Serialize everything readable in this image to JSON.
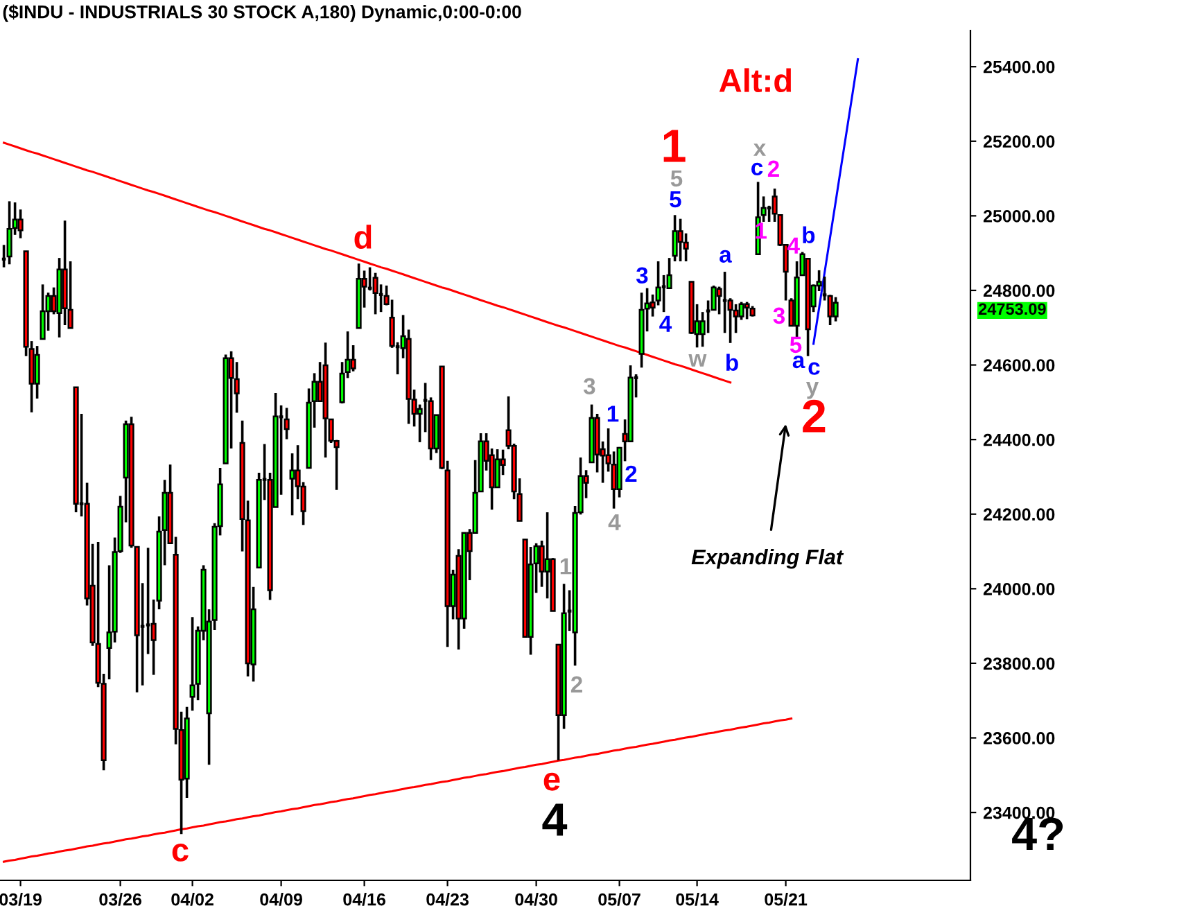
{
  "chart_data": {
    "type": "candlestick",
    "title": "($INDU - INDUSTRIALS 30 STOCK A,180) Dynamic,0:00-0:00",
    "categories": [
      null,
      null,
      null,
      "03/19",
      null,
      null,
      null,
      null,
      null,
      null,
      null,
      null,
      null,
      null,
      null,
      null,
      null,
      null,
      null,
      null,
      null,
      "03/26",
      null,
      null,
      null,
      null,
      null,
      null,
      null,
      null,
      null,
      null,
      null,
      null,
      "04/02",
      null,
      null,
      null,
      null,
      null,
      null,
      null,
      null,
      null,
      null,
      null,
      null,
      null,
      null,
      null,
      "04/09",
      null,
      null,
      null,
      null,
      null,
      null,
      null,
      null,
      null,
      null,
      null,
      null,
      null,
      null,
      "04/16",
      null,
      null,
      null,
      null,
      null,
      null,
      null,
      null,
      null,
      null,
      null,
      null,
      null,
      null,
      "04/23",
      null,
      null,
      null,
      null,
      null,
      null,
      null,
      null,
      null,
      null,
      null,
      null,
      null,
      null,
      null,
      "04/30",
      null,
      null,
      null,
      null,
      null,
      null,
      null,
      null,
      null,
      null,
      null,
      null,
      null,
      null,
      "05/07",
      null,
      null,
      null,
      null,
      null,
      null,
      null,
      null,
      null,
      null,
      null,
      null,
      null,
      "05/14",
      null,
      null,
      null,
      null,
      null,
      null,
      null,
      null,
      null,
      null,
      null,
      null,
      null,
      null,
      null,
      "05/21",
      null,
      null,
      null,
      null,
      null,
      null,
      null,
      null,
      null,
      null,
      null,
      null,
      null
    ],
    "ohlc": [
      [
        24884,
        24922,
        24862,
        24884
      ],
      [
        24891,
        25039,
        24870,
        24965
      ],
      [
        24967,
        25036,
        24949,
        24990
      ],
      [
        24990,
        25017,
        24940,
        24961
      ],
      [
        24905,
        24905,
        24624,
        24649
      ],
      [
        24643,
        24664,
        24473,
        24550
      ],
      [
        24550,
        24651,
        24510,
        24627
      ],
      [
        24670,
        24816,
        24670,
        24744
      ],
      [
        24744,
        24794,
        24692,
        24785
      ],
      [
        24785,
        24808,
        24736,
        24744
      ],
      [
        24739,
        24887,
        24674,
        24856
      ],
      [
        24856,
        24987,
        24707,
        24752
      ],
      [
        24748,
        24878,
        24699,
        24699
      ],
      [
        24540,
        24540,
        24205,
        24228
      ],
      [
        24228,
        24469,
        24194,
        24228
      ],
      [
        24228,
        24284,
        23955,
        23974
      ],
      [
        24008,
        24120,
        23847,
        23856
      ],
      [
        23852,
        24125,
        23736,
        23748
      ],
      [
        23745,
        23772,
        23513,
        23540
      ],
      [
        23841,
        24063,
        23757,
        23883
      ],
      [
        23885,
        24137,
        23856,
        24098
      ],
      [
        24101,
        24249,
        24096,
        24220
      ],
      [
        24298,
        24451,
        24178,
        24441
      ],
      [
        24441,
        24461,
        24110,
        24116
      ],
      [
        24112,
        24112,
        23722,
        23875
      ],
      [
        23899,
        24015,
        23741,
        23899
      ],
      [
        23903,
        24110,
        23825,
        23903
      ],
      [
        23906,
        23971,
        23769,
        23862
      ],
      [
        23968,
        24194,
        23945,
        24153
      ],
      [
        24157,
        24292,
        24063,
        24257
      ],
      [
        24257,
        24333,
        24122,
        24122
      ],
      [
        24091,
        24139,
        23583,
        23624
      ],
      [
        23621,
        23670,
        23342,
        23488
      ],
      [
        23491,
        23683,
        23439,
        23652
      ],
      [
        23710,
        23924,
        23673,
        23741
      ],
      [
        23745,
        23899,
        23701,
        23887
      ],
      [
        23887,
        24063,
        23862,
        24051
      ],
      [
        23666,
        23945,
        23528,
        23912
      ],
      [
        23916,
        24176,
        23889,
        24166
      ],
      [
        24168,
        24324,
        24143,
        24280
      ],
      [
        24336,
        24628,
        24336,
        24618
      ],
      [
        24618,
        24637,
        24376,
        24565
      ],
      [
        24562,
        24608,
        24472,
        24524
      ],
      [
        24391,
        24451,
        24100,
        24187
      ],
      [
        24183,
        24236,
        23765,
        23800
      ],
      [
        23797,
        24005,
        23751,
        23945
      ],
      [
        24057,
        24311,
        24057,
        24292
      ],
      [
        24293,
        24388,
        24238,
        24293
      ],
      [
        24292,
        24311,
        23970,
        23996
      ],
      [
        24219,
        24525,
        24219,
        24462
      ],
      [
        24461,
        24492,
        24252,
        24461
      ],
      [
        24454,
        24485,
        24401,
        24428
      ],
      [
        24295,
        24363,
        24197,
        24317
      ],
      [
        24317,
        24385,
        24240,
        24275
      ],
      [
        24274,
        24286,
        24171,
        24208
      ],
      [
        24324,
        24537,
        24324,
        24499
      ],
      [
        24503,
        24578,
        24432,
        24555
      ],
      [
        24555,
        24608,
        24503,
        24503
      ],
      [
        24599,
        24660,
        24352,
        24457
      ],
      [
        24454,
        24454,
        24391,
        24397
      ],
      [
        24396,
        24399,
        24265,
        24380
      ],
      [
        24500,
        24608,
        24497,
        24577
      ],
      [
        24581,
        24690,
        24565,
        24614
      ],
      [
        24614,
        24653,
        24583,
        24591
      ],
      [
        24699,
        24872,
        24699,
        24831
      ],
      [
        24831,
        24853,
        24754,
        24810
      ],
      [
        24806,
        24862,
        24800,
        24806
      ],
      [
        24834,
        24847,
        24736,
        24793
      ],
      [
        24789,
        24816,
        24742,
        24789
      ],
      [
        24785,
        24813,
        24760,
        24763
      ],
      [
        24727,
        24775,
        24646,
        24651
      ],
      [
        24649,
        24661,
        24575,
        24649
      ],
      [
        24645,
        24734,
        24618,
        24677
      ],
      [
        24670,
        24695,
        24442,
        24509
      ],
      [
        24507,
        24534,
        24435,
        24469
      ],
      [
        24469,
        24494,
        24393,
        24482
      ],
      [
        24505,
        24552,
        24420,
        24505
      ],
      [
        24503,
        24513,
        24345,
        24376
      ],
      [
        24376,
        24466,
        24364,
        24466
      ],
      [
        24596,
        24596,
        24321,
        24324
      ],
      [
        24317,
        24343,
        23844,
        23953
      ],
      [
        23953,
        24051,
        23918,
        24038
      ],
      [
        24088,
        24106,
        23837,
        23920
      ],
      [
        23920,
        24150,
        23893,
        24150
      ],
      [
        24150,
        24160,
        24023,
        24101
      ],
      [
        24150,
        24345,
        24150,
        24257
      ],
      [
        24261,
        24417,
        24261,
        24395
      ],
      [
        24395,
        24417,
        24317,
        24343
      ],
      [
        24358,
        24376,
        24212,
        24272
      ],
      [
        24272,
        24374,
        24272,
        24347
      ],
      [
        24347,
        24373,
        24305,
        24332
      ],
      [
        24425,
        24516,
        24374,
        24383
      ],
      [
        24383,
        24389,
        24240,
        24261
      ],
      [
        24254,
        24296,
        24182,
        24182
      ],
      [
        24132,
        24132,
        23871,
        23871
      ],
      [
        23871,
        24112,
        23823,
        24065
      ],
      [
        24068,
        24122,
        23989,
        24114
      ],
      [
        24114,
        24129,
        24005,
        24046
      ],
      [
        24046,
        24205,
        23974,
        24079
      ],
      [
        24079,
        24082,
        23940,
        23940
      ],
      [
        23850,
        23850,
        23540,
        23661
      ],
      [
        23661,
        24013,
        23624,
        23934
      ],
      [
        23940,
        23996,
        23887,
        23940
      ],
      [
        23883,
        24222,
        23794,
        24203
      ],
      [
        24205,
        24352,
        24199,
        24302
      ],
      [
        24302,
        24318,
        24243,
        24284
      ],
      [
        24339,
        24494,
        24339,
        24458
      ],
      [
        24458,
        24469,
        24312,
        24360
      ],
      [
        24374,
        24395,
        24284,
        24357
      ],
      [
        24358,
        24430,
        24314,
        24336
      ],
      [
        24333,
        24368,
        24215,
        24267
      ],
      [
        24267,
        24380,
        24245,
        24378
      ],
      [
        24415,
        24454,
        24342,
        24395
      ],
      [
        24395,
        24599,
        24395,
        24566
      ],
      [
        24566,
        24575,
        24513,
        24566
      ],
      [
        24630,
        24794,
        24593,
        24748
      ],
      [
        24751,
        24806,
        24690,
        24765
      ],
      [
        24768,
        24789,
        24730,
        24754
      ],
      [
        24773,
        24878,
        24760,
        24808
      ],
      [
        24810,
        24841,
        24742,
        24810
      ],
      [
        24806,
        24887,
        24806,
        24841
      ],
      [
        24893,
        25002,
        24878,
        24959
      ],
      [
        24959,
        24992,
        24878,
        24930
      ],
      [
        24928,
        24953,
        24878,
        24912
      ],
      [
        24823,
        24823,
        24683,
        24686
      ],
      [
        24683,
        24763,
        24647,
        24717
      ],
      [
        24683,
        24742,
        24649,
        24717
      ],
      [
        24745,
        24773,
        24686,
        24745
      ],
      [
        24748,
        24813,
        24748,
        24808
      ],
      [
        24804,
        24810,
        24736,
        24785
      ],
      [
        24773,
        24850,
        24686,
        24773
      ],
      [
        24773,
        24779,
        24659,
        24748
      ],
      [
        24746,
        24763,
        24686,
        24730
      ],
      [
        24730,
        24769,
        24721,
        24763
      ],
      [
        24763,
        24769,
        24723,
        24754
      ],
      [
        24751,
        24758,
        24730,
        24733
      ],
      [
        24897,
        25091,
        24897,
        24996
      ],
      [
        25002,
        25052,
        24984,
        25021
      ],
      [
        25021,
        25027,
        24984,
        25021
      ],
      [
        25052,
        25073,
        24984,
        25006
      ],
      [
        25002,
        25002,
        24919,
        24922
      ],
      [
        24922,
        24922,
        24773,
        24850
      ],
      [
        24773,
        24779,
        24705,
        24705
      ],
      [
        24705,
        24878,
        24674,
        24835
      ],
      [
        24841,
        24903,
        24841,
        24897
      ],
      [
        24885,
        24887,
        24624,
        24696
      ],
      [
        24757,
        24816,
        24742,
        24813
      ],
      [
        24813,
        24854,
        24798,
        24823
      ],
      [
        24788,
        24837,
        24773,
        24788
      ],
      [
        24785,
        24788,
        24707,
        24730
      ],
      [
        24730,
        24782,
        24717,
        24767
      ],
      null,
      null,
      null,
      null
    ],
    "series": [
      {
        "type": "line",
        "color": "#ff0000",
        "values": [
          25196,
          25191,
          25186,
          25181,
          25176,
          25171,
          25167,
          25162,
          25157,
          25152,
          25147,
          25142,
          25137,
          25132,
          25127,
          25122,
          25118,
          25113,
          25108,
          25103,
          25098,
          25093,
          25088,
          25083,
          25078,
          25073,
          25068,
          25064,
          25059,
          25054,
          25049,
          25044,
          25039,
          25034,
          25029,
          25024,
          25019,
          25014,
          25010,
          25005,
          25000,
          24995,
          24990,
          24985,
          24980,
          24975,
          24970,
          24965,
          24961,
          24956,
          24951,
          24946,
          24941,
          24936,
          24931,
          24926,
          24921,
          24916,
          24911,
          24907,
          24902,
          24897,
          24892,
          24887,
          24882,
          24877,
          24872,
          24867,
          24862,
          24858,
          24853,
          24848,
          24843,
          24838,
          24833,
          24828,
          24823,
          24818,
          24813,
          24808,
          24804,
          24799,
          24794,
          24789,
          24784,
          24779,
          24774,
          24769,
          24764,
          24759,
          24755,
          24750,
          24745,
          24740,
          24735,
          24730,
          24725,
          24720,
          24715,
          24710,
          24705,
          24701,
          24696,
          24691,
          24686,
          24681,
          24676,
          24671,
          24666,
          24661,
          24656,
          24651,
          24647,
          24642,
          24637,
          24632,
          24627,
          24622,
          24617,
          24612,
          24607,
          24602,
          24598,
          24593,
          24588,
          24583,
          24578,
          24573,
          24568,
          24563,
          24558,
          24553,
          null,
          null,
          null,
          null,
          null,
          null,
          null,
          null,
          null,
          null,
          null,
          null,
          null,
          null,
          null,
          null,
          null,
          null,
          null,
          null,
          null,
          null,
          null
        ]
      },
      {
        "type": "line",
        "color": "#ff0000",
        "values": [
          23268,
          23271,
          23273,
          23276,
          23279,
          23282,
          23284,
          23287,
          23290,
          23292,
          23295,
          23298,
          23300,
          23303,
          23306,
          23309,
          23311,
          23314,
          23317,
          23319,
          23322,
          23325,
          23328,
          23330,
          23333,
          23336,
          23338,
          23341,
          23344,
          23346,
          23349,
          23352,
          23355,
          23357,
          23360,
          23363,
          23365,
          23368,
          23371,
          23374,
          23376,
          23379,
          23382,
          23384,
          23387,
          23390,
          23392,
          23395,
          23398,
          23401,
          23403,
          23406,
          23409,
          23411,
          23414,
          23417,
          23420,
          23422,
          23425,
          23428,
          23430,
          23433,
          23436,
          23438,
          23441,
          23444,
          23447,
          23449,
          23452,
          23455,
          23457,
          23460,
          23463,
          23466,
          23468,
          23471,
          23474,
          23476,
          23479,
          23482,
          23484,
          23487,
          23490,
          23493,
          23495,
          23498,
          23501,
          23503,
          23506,
          23509,
          23511,
          23514,
          23517,
          23520,
          23522,
          23525,
          23528,
          23530,
          23533,
          23536,
          23539,
          23541,
          23544,
          23547,
          23549,
          23552,
          23555,
          23557,
          23560,
          23563,
          23566,
          23568,
          23571,
          23574,
          23576,
          23579,
          23582,
          23584,
          23587,
          23590,
          23593,
          23595,
          23598,
          23601,
          23603,
          23606,
          23609,
          23612,
          23614,
          23617,
          23620,
          23622,
          23625,
          23628,
          23630,
          23633,
          23636,
          23639,
          23641,
          23644,
          23647,
          23649,
          23652,
          null,
          null,
          null,
          null,
          null,
          null,
          null,
          null,
          null,
          null,
          null,
          null
        ]
      },
      {
        "type": "line",
        "color": "#0000ff",
        "values": [
          null,
          null,
          null,
          null,
          null,
          null,
          null,
          null,
          null,
          null,
          null,
          null,
          null,
          null,
          null,
          null,
          null,
          null,
          null,
          null,
          null,
          null,
          null,
          null,
          null,
          null,
          null,
          null,
          null,
          null,
          null,
          null,
          null,
          null,
          null,
          null,
          null,
          null,
          null,
          null,
          null,
          null,
          null,
          null,
          null,
          null,
          null,
          null,
          null,
          null,
          null,
          null,
          null,
          null,
          null,
          null,
          null,
          null,
          null,
          null,
          null,
          null,
          null,
          null,
          null,
          null,
          null,
          null,
          null,
          null,
          null,
          null,
          null,
          null,
          null,
          null,
          null,
          null,
          null,
          null,
          null,
          null,
          null,
          null,
          null,
          null,
          null,
          null,
          null,
          null,
          null,
          null,
          null,
          null,
          null,
          null,
          null,
          null,
          null,
          null,
          null,
          null,
          null,
          null,
          null,
          null,
          null,
          null,
          null,
          null,
          null,
          null,
          null,
          null,
          null,
          null,
          null,
          null,
          null,
          null,
          null,
          null,
          null,
          null,
          null,
          null,
          null,
          null,
          null,
          null,
          null,
          null,
          null,
          null,
          null,
          null,
          null,
          null,
          null,
          null,
          null,
          null,
          null,
          null,
          null,
          null,
          24657,
          24752,
          24848,
          24943,
          25038,
          25134,
          25229,
          25324,
          25420
        ]
      }
    ],
    "ylim": [
      23218,
      25497
    ],
    "yticks": [
      {
        "value": 23400,
        "label": "23400.00"
      },
      {
        "value": 23600,
        "label": "23600.00"
      },
      {
        "value": 23800,
        "label": "23800.00"
      },
      {
        "value": 24000,
        "label": "24000.00"
      },
      {
        "value": 24200,
        "label": "24200.00"
      },
      {
        "value": 24400,
        "label": "24400.00"
      },
      {
        "value": 24600,
        "label": "24600.00"
      },
      {
        "value": 24800,
        "label": "24800.00"
      },
      {
        "value": 25000,
        "label": "25000.00"
      },
      {
        "value": 25200,
        "label": "25200.00"
      },
      {
        "value": 25400,
        "label": "25400.00"
      }
    ],
    "grid": false,
    "legend": false,
    "annotations": [
      "d",
      "c",
      "e",
      "4",
      "1",
      "2",
      "3",
      "4",
      "1",
      "2",
      "3",
      "4",
      "5",
      "5",
      "1",
      "w",
      "a",
      "b",
      "x",
      "c",
      "2",
      "1",
      "Alt:d",
      "b",
      "4",
      "3",
      "5",
      "a",
      "c",
      "y",
      "2",
      "Expanding Flat",
      "4?",
      "24753.09"
    ]
  }
}
